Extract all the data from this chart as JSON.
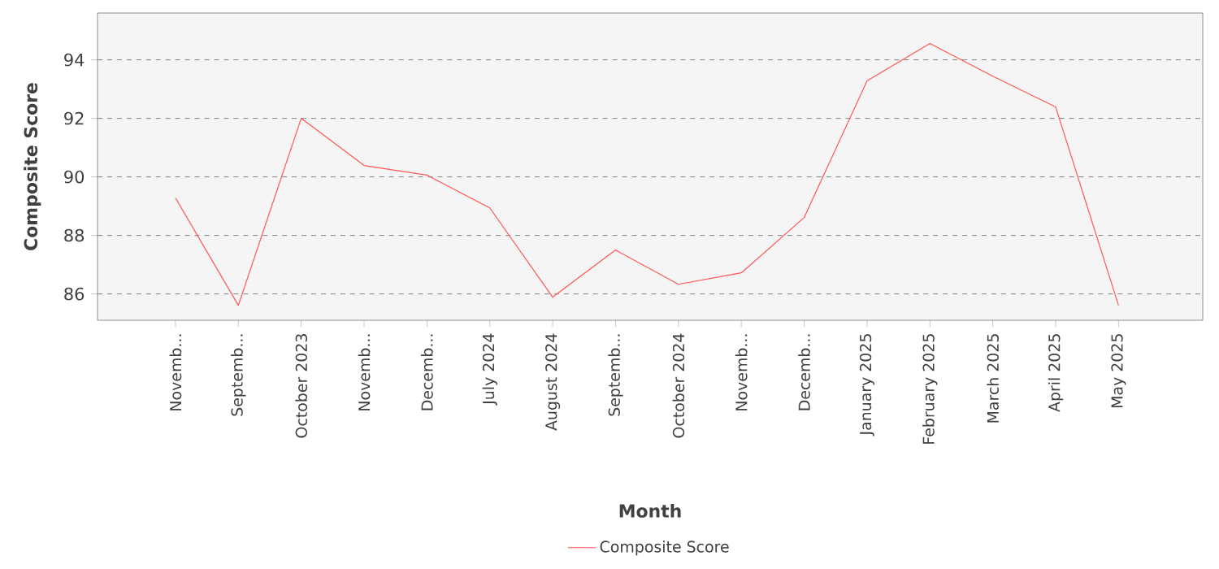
{
  "chart_data": {
    "type": "line",
    "xlabel": "Month",
    "ylabel": "Composite Score",
    "categories": [
      "Novemb...",
      "Septemb...",
      "October 2023",
      "Novemb...",
      "Decemb...",
      "July 2024",
      "August 2024",
      "Septemb...",
      "October 2024",
      "Novemb...",
      "Decemb...",
      "January 2025",
      "February 2025",
      "March 2025",
      "April 2025",
      "May 2025"
    ],
    "series": [
      {
        "name": "Composite Score",
        "color": "#ff5555",
        "values": [
          89.28,
          85.61,
          92.0,
          90.39,
          90.06,
          88.94,
          85.89,
          87.5,
          86.33,
          86.72,
          88.61,
          93.28,
          94.56,
          93.44,
          92.39,
          85.61
        ]
      }
    ],
    "ylim": [
      85.1,
      95.6
    ],
    "yticks": [
      86,
      88,
      90,
      92,
      94
    ],
    "grid": "y",
    "legend": "bottom",
    "marker": "none",
    "line_style": "solid"
  }
}
